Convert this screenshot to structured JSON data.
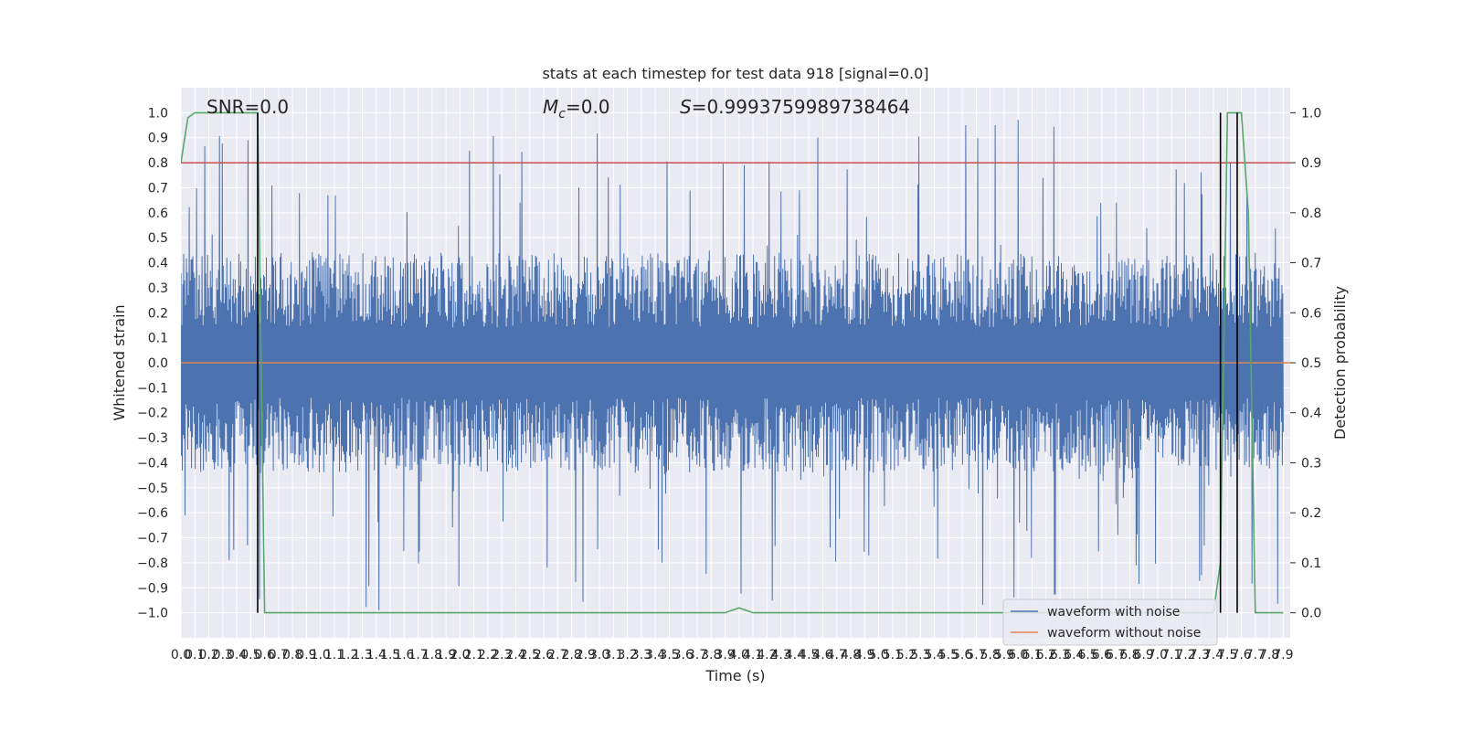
{
  "chart_data": {
    "type": "line",
    "title": "stats at each timestep for test data 918 [signal=0.0]",
    "xlabel": "Time (s)",
    "ylabel": "Whitened strain",
    "y2label": "Detection probability",
    "xlim": [
      0.0,
      7.95
    ],
    "ylim": [
      -1.1,
      1.1
    ],
    "y2lim": [
      -0.05,
      1.05
    ],
    "x_ticks": [
      0.0,
      0.1,
      0.2,
      0.3,
      0.4,
      0.5,
      0.6,
      0.7,
      0.8,
      0.9,
      1.0,
      1.1,
      1.2,
      1.3,
      1.4,
      1.5,
      1.6,
      1.7,
      1.8,
      1.9,
      2.0,
      2.1,
      2.2,
      2.3,
      2.4,
      2.5,
      2.6,
      2.7,
      2.8,
      2.9,
      3.0,
      3.1,
      3.2,
      3.3,
      3.4,
      3.5,
      3.6,
      3.7,
      3.8,
      3.9,
      4.0,
      4.1,
      4.2,
      4.3,
      4.4,
      4.5,
      4.6,
      4.7,
      4.8,
      4.9,
      5.0,
      5.1,
      5.2,
      5.3,
      5.4,
      5.5,
      5.6,
      5.7,
      5.8,
      5.9,
      6.0,
      6.1,
      6.2,
      6.3,
      6.4,
      6.5,
      6.6,
      6.7,
      6.8,
      6.9,
      7.0,
      7.1,
      7.2,
      7.3,
      7.4,
      7.5,
      7.6,
      7.7,
      7.8,
      7.9
    ],
    "y_ticks": [
      -1.0,
      -0.9,
      -0.8,
      -0.7,
      -0.6,
      -0.5,
      -0.4,
      -0.3,
      -0.2,
      -0.1,
      0.0,
      0.1,
      0.2,
      0.3,
      0.4,
      0.5,
      0.6,
      0.7,
      0.8,
      0.9,
      1.0
    ],
    "y2_ticks": [
      0.0,
      0.1,
      0.2,
      0.3,
      0.4,
      0.5,
      0.6,
      0.7,
      0.8,
      0.9,
      1.0
    ],
    "annotations": {
      "snr": "SNR=0.0",
      "mc_symbol": "M",
      "mc_sub": "c",
      "mc_value": "=0.0",
      "s_symbol": "S",
      "s_value": "=0.9993759989738464"
    },
    "grid": true,
    "legend_position": "lower-right",
    "series": [
      {
        "name": "waveform with noise",
        "color": "#4c72b0",
        "envelope_typical": 0.4,
        "envelope_peak": 0.99
      },
      {
        "name": "waveform without noise",
        "color": "#dd8452",
        "values_constant": 0.0
      },
      {
        "name": "",
        "color": "#55a868",
        "axis": "y2",
        "x": [
          0.0,
          0.05,
          0.1,
          0.15,
          0.2,
          0.25,
          0.3,
          0.35,
          0.4,
          0.45,
          0.5,
          0.55,
          0.6,
          0.65,
          0.7,
          0.75,
          0.8,
          0.85,
          0.9,
          1.0,
          1.5,
          2.0,
          2.5,
          3.0,
          3.5,
          3.9,
          3.95,
          4.0,
          4.05,
          4.1,
          4.15,
          4.2,
          4.5,
          5.0,
          5.5,
          6.0,
          6.5,
          7.0,
          7.3,
          7.35,
          7.4,
          7.45,
          7.5,
          7.55,
          7.6,
          7.65,
          7.7,
          7.75,
          7.8,
          7.85,
          7.9
        ],
        "values": [
          0.9,
          0.99,
          1.0,
          1.0,
          1.0,
          1.0,
          1.0,
          1.0,
          1.0,
          1.0,
          1.0,
          1.0,
          0.0,
          0.0,
          0.0,
          0.0,
          0.0,
          0.0,
          0.0,
          0.0,
          0.0,
          0.0,
          0.0,
          0.0,
          0.0,
          0.0,
          0.005,
          0.01,
          0.005,
          0.0,
          0.0,
          0.0,
          0.0,
          0.0,
          0.0,
          0.0,
          0.0,
          0.0,
          0.0,
          0.0,
          0.0,
          0.1,
          1.0,
          1.0,
          1.0,
          0.8,
          0.0,
          0.0,
          0.0,
          0.0,
          0.0
        ]
      },
      {
        "name": "",
        "color": "#c44e52",
        "axis": "y2",
        "values_constant": 0.9
      }
    ],
    "vertical_lines_x": [
      0.55,
      7.45,
      7.57
    ],
    "vertical_lines_color": "#000000"
  }
}
